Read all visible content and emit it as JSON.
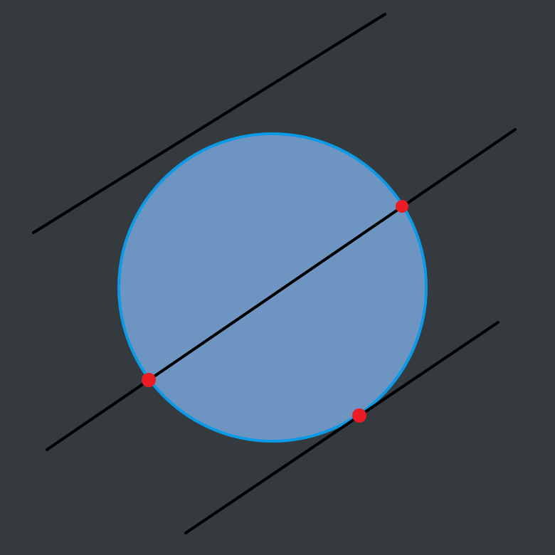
{
  "diagram": {
    "colors": {
      "background": "#353a3e",
      "circle_fill": "#6e94c2",
      "circle_stroke": "#0b9ae6",
      "line": "#000000",
      "point": "#ec1c24"
    },
    "shapes": {
      "circle": "circle",
      "lines": [
        "external-line",
        "secant-line",
        "tangent-line"
      ],
      "points": [
        "secant-intersection-top",
        "secant-intersection-bottom",
        "tangent-point"
      ]
    }
  }
}
